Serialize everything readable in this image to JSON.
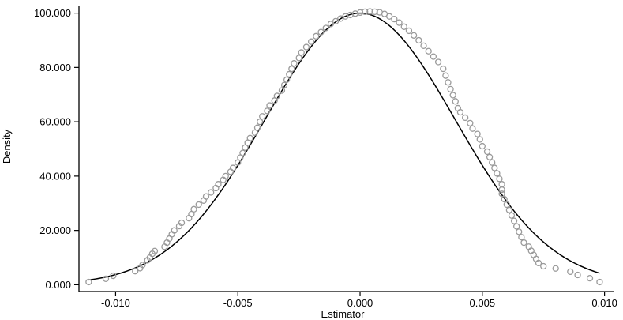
{
  "chart_data": {
    "type": "scatter",
    "title": "",
    "xlabel": "Estimator",
    "ylabel": "Density",
    "xlim": [
      -0.0115,
      0.0104
    ],
    "ylim": [
      -2.5,
      102.5
    ],
    "x_ticks": [
      -0.01,
      -0.005,
      0.0,
      0.005,
      0.01
    ],
    "x_tick_labels": [
      "-0.010",
      "-0.005",
      "0.000",
      "0.005",
      "0.010"
    ],
    "y_ticks": [
      0,
      20,
      40,
      60,
      80,
      100
    ],
    "y_tick_labels": [
      "0.000",
      "20.000",
      "40.000",
      "60.000",
      "80.000",
      "100.000"
    ],
    "grid": false,
    "series": [
      {
        "kind": "markers",
        "marker": "hollow-circle",
        "color": "#9a9a9a",
        "points": [
          [
            -0.0111,
            1.0
          ],
          [
            -0.0104,
            2.2
          ],
          [
            -0.0101,
            3.3
          ],
          [
            -0.0092,
            5.0
          ],
          [
            -0.009,
            6.1
          ],
          [
            -0.0089,
            7.3
          ],
          [
            -0.0087,
            9.0
          ],
          [
            -0.0086,
            10.0
          ],
          [
            -0.0085,
            11.4
          ],
          [
            -0.0084,
            12.4
          ],
          [
            -0.008,
            14.0
          ],
          [
            -0.0079,
            15.5
          ],
          [
            -0.0078,
            17.0
          ],
          [
            -0.0077,
            18.6
          ],
          [
            -0.0076,
            20.0
          ],
          [
            -0.0074,
            21.6
          ],
          [
            -0.0073,
            22.8
          ],
          [
            -0.007,
            24.5
          ],
          [
            -0.0069,
            26.0
          ],
          [
            -0.0068,
            27.8
          ],
          [
            -0.0066,
            29.5
          ],
          [
            -0.0064,
            31.0
          ],
          [
            -0.0063,
            32.5
          ],
          [
            -0.0061,
            34.0
          ],
          [
            -0.0059,
            35.6
          ],
          [
            -0.0058,
            37.0
          ],
          [
            -0.0056,
            38.6
          ],
          [
            -0.0055,
            40.0
          ],
          [
            -0.0053,
            41.6
          ],
          [
            -0.0052,
            43.0
          ],
          [
            -0.005,
            45.0
          ],
          [
            -0.0049,
            46.8
          ],
          [
            -0.0048,
            48.5
          ],
          [
            -0.0047,
            50.5
          ],
          [
            -0.0046,
            52.3
          ],
          [
            -0.0045,
            54.0
          ],
          [
            -0.0043,
            56.0
          ],
          [
            -0.0042,
            57.8
          ],
          [
            -0.0041,
            60.0
          ],
          [
            -0.004,
            62.0
          ],
          [
            -0.0038,
            64.0
          ],
          [
            -0.0037,
            66.0
          ],
          [
            -0.0035,
            67.8
          ],
          [
            -0.0034,
            69.5
          ],
          [
            -0.0032,
            71.5
          ],
          [
            -0.0031,
            73.5
          ],
          [
            -0.003,
            75.5
          ],
          [
            -0.0029,
            77.5
          ],
          [
            -0.0028,
            79.5
          ],
          [
            -0.0027,
            81.5
          ],
          [
            -0.0025,
            83.5
          ],
          [
            -0.0024,
            85.5
          ],
          [
            -0.0022,
            87.5
          ],
          [
            -0.002,
            89.5
          ],
          [
            -0.0018,
            91.5
          ],
          [
            -0.0016,
            93.0
          ],
          [
            -0.0014,
            94.5
          ],
          [
            -0.0012,
            96.0
          ],
          [
            -0.001,
            97.0
          ],
          [
            -0.0008,
            98.0
          ],
          [
            -0.0006,
            98.8
          ],
          [
            -0.0004,
            99.3
          ],
          [
            -0.0002,
            99.8
          ],
          [
            0.0,
            100.2
          ],
          [
            0.0002,
            100.5
          ],
          [
            0.0004,
            100.6
          ],
          [
            0.0006,
            100.5
          ],
          [
            0.0008,
            100.3
          ],
          [
            0.001,
            99.7
          ],
          [
            0.0012,
            98.8
          ],
          [
            0.0014,
            97.8
          ],
          [
            0.0016,
            96.5
          ],
          [
            0.0018,
            95.0
          ],
          [
            0.002,
            93.5
          ],
          [
            0.0022,
            91.8
          ],
          [
            0.0024,
            90.0
          ],
          [
            0.0026,
            88.0
          ],
          [
            0.0028,
            86.0
          ],
          [
            0.003,
            84.0
          ],
          [
            0.0032,
            82.0
          ],
          [
            0.0034,
            79.5
          ],
          [
            0.0035,
            77.0
          ],
          [
            0.0036,
            74.5
          ],
          [
            0.0037,
            72.0
          ],
          [
            0.0038,
            69.8
          ],
          [
            0.0039,
            67.5
          ],
          [
            0.004,
            65.0
          ],
          [
            0.0041,
            63.5
          ],
          [
            0.0043,
            61.5
          ],
          [
            0.0045,
            59.5
          ],
          [
            0.0046,
            57.5
          ],
          [
            0.0048,
            55.5
          ],
          [
            0.0049,
            53.5
          ],
          [
            0.005,
            51.0
          ],
          [
            0.0052,
            49.0
          ],
          [
            0.0053,
            47.0
          ],
          [
            0.0054,
            45.0
          ],
          [
            0.0055,
            43.0
          ],
          [
            0.0056,
            41.0
          ],
          [
            0.0057,
            39.0
          ],
          [
            0.0058,
            37.0
          ],
          [
            0.0058,
            35.0
          ],
          [
            0.0058,
            33.5
          ],
          [
            0.0059,
            31.5
          ],
          [
            0.006,
            29.5
          ],
          [
            0.0061,
            27.5
          ],
          [
            0.0062,
            25.5
          ],
          [
            0.0063,
            23.5
          ],
          [
            0.0064,
            21.5
          ],
          [
            0.0065,
            19.5
          ],
          [
            0.0066,
            17.5
          ],
          [
            0.0067,
            15.5
          ],
          [
            0.0069,
            14.0
          ],
          [
            0.007,
            12.5
          ],
          [
            0.0071,
            11.0
          ],
          [
            0.0072,
            9.5
          ],
          [
            0.0073,
            8.0
          ],
          [
            0.0075,
            6.8
          ],
          [
            0.008,
            6.0
          ],
          [
            0.0086,
            4.8
          ],
          [
            0.0089,
            3.6
          ],
          [
            0.0094,
            2.4
          ],
          [
            0.0098,
            1.0
          ]
        ]
      },
      {
        "kind": "curve",
        "style": "solid",
        "color": "#000000",
        "description": "normal density",
        "mean": 0.0,
        "sd": 0.0039,
        "peak": 100.0
      }
    ]
  }
}
